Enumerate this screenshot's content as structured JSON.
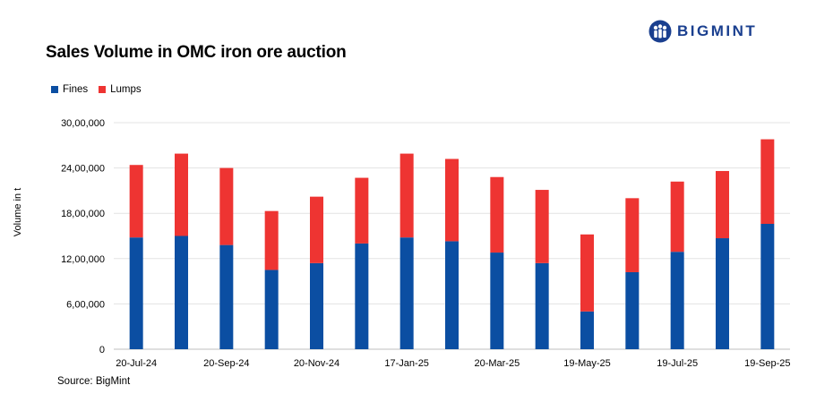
{
  "brand": {
    "name": "BIGMINT",
    "icon": "bigmint-people-icon"
  },
  "source": "Source: BigMint",
  "chart_data": {
    "type": "bar",
    "stacked": true,
    "title": "Sales Volume in OMC iron ore auction",
    "ylabel": "Volume in t",
    "xlabel": "",
    "ylim": [
      0,
      3000000
    ],
    "yticks": [
      0,
      600000,
      1200000,
      1800000,
      2400000,
      3000000
    ],
    "ytick_labels": [
      "0",
      "6,00,000",
      "12,00,000",
      "18,00,000",
      "24,00,000",
      "30,00,000"
    ],
    "grid": true,
    "legend": "top-left",
    "categories": [
      "20-Jul-24",
      "",
      "20-Sep-24",
      "",
      "20-Nov-24",
      "",
      "17-Jan-25",
      "",
      "20-Mar-25",
      "",
      "19-May-25",
      "",
      "19-Jul-25",
      "",
      "19-Sep-25"
    ],
    "series": [
      {
        "name": "Fines",
        "color": "#0b4ea2",
        "values": [
          1480000,
          1500000,
          1380000,
          1050000,
          1140000,
          1400000,
          1480000,
          1430000,
          1280000,
          1140000,
          500000,
          1020000,
          1290000,
          1470000,
          1660000
        ]
      },
      {
        "name": "Lumps",
        "color": "#ee3432",
        "values": [
          960000,
          1090000,
          1020000,
          780000,
          880000,
          870000,
          1110000,
          1090000,
          1000000,
          970000,
          1020000,
          980000,
          930000,
          890000,
          1120000
        ]
      }
    ]
  }
}
